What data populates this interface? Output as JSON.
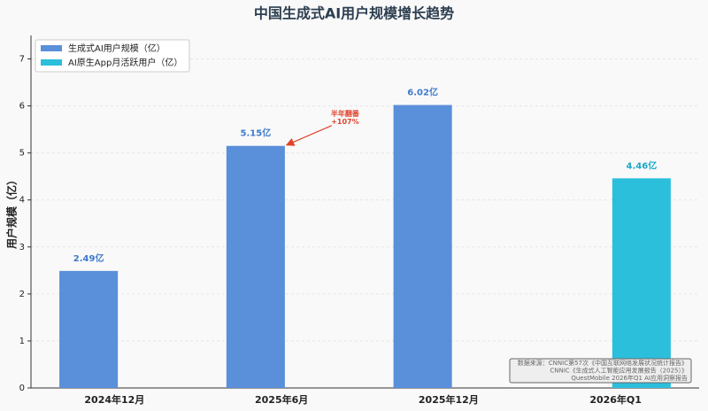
{
  "chart_data": {
    "type": "bar",
    "title": "中国生成式AI用户规模增长趋势",
    "y_label": "用户规模（亿）",
    "categories": [
      "2024年12月",
      "2025年6月",
      "2025年12月",
      "2026年Q1"
    ],
    "series": [
      {
        "name": "生成式AI用户规模（亿）",
        "color": "#5a8fd9",
        "label_color": "#3f7acb",
        "values": [
          2.49,
          5.15,
          6.02,
          null
        ],
        "value_labels": [
          "2.49亿",
          "5.15亿",
          "6.02亿",
          null
        ]
      },
      {
        "name": "AI原生App月活跃用户（亿）",
        "color": "#2bbfdc",
        "label_color": "#1aa8c9",
        "values": [
          null,
          null,
          null,
          4.46
        ],
        "value_labels": [
          null,
          null,
          null,
          "4.46亿"
        ]
      }
    ],
    "ylim": [
      0,
      7.5
    ],
    "yticks": [
      0,
      1,
      2,
      3,
      4,
      5,
      6,
      7
    ],
    "grid": true,
    "legend": "upper left",
    "annotation": {
      "lines": [
        "半年翻番",
        "+107%"
      ],
      "series": 0,
      "index": 1,
      "color": "#e0442c"
    },
    "source": [
      "数据来源：CNNIC第57次《中国互联网络发展状况统计报告》",
      "CNNIC《生成式人工智能应用发展报告（2025）》",
      "QuestMobile 2026年Q1 AI应用洞察报告"
    ]
  }
}
